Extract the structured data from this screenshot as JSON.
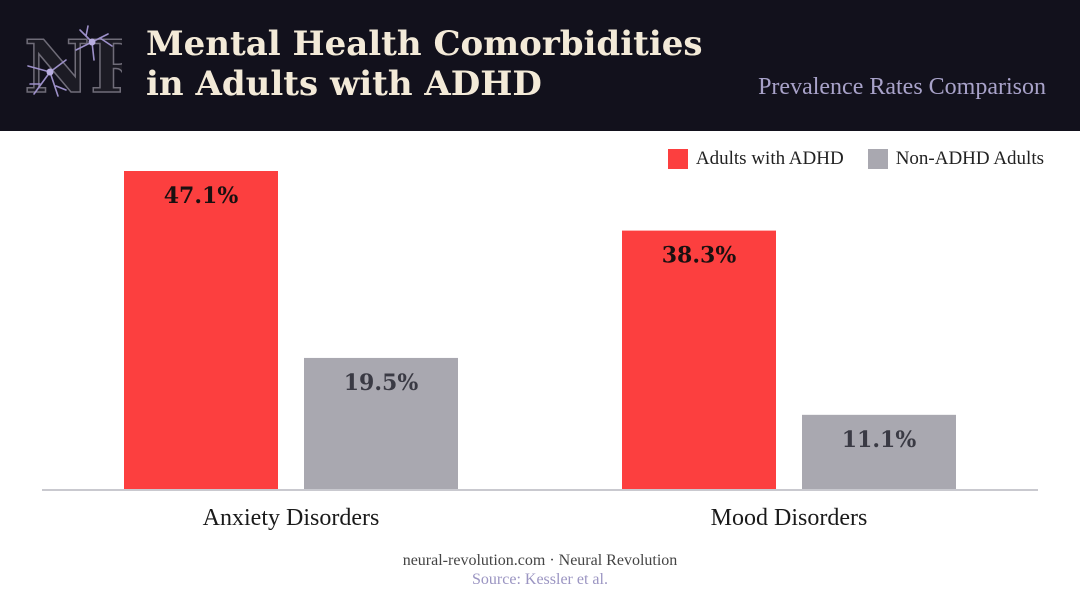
{
  "header": {
    "title_line1": "Mental Health Comorbidities",
    "title_line2": "in Adults with ADHD",
    "subtitle": "Prevalence Rates Comparison",
    "logo_text": "NR"
  },
  "colors": {
    "adhd": "#fc3f3f",
    "non_adhd": "#a9a8b0",
    "header_bg": "#12111c"
  },
  "chart_data": {
    "type": "bar",
    "categories": [
      "Anxiety Disorders",
      "Mood Disorders"
    ],
    "series": [
      {
        "name": "Adults with ADHD",
        "values": [
          47.1,
          38.3
        ],
        "labels": [
          "47.1%",
          "38.3%"
        ],
        "color": "#fc3f3f"
      },
      {
        "name": "Non-ADHD Adults",
        "values": [
          19.5,
          11.1
        ],
        "labels": [
          "19.5%",
          "11.1%"
        ],
        "color": "#a9a8b0"
      }
    ],
    "ylim": [
      0,
      47.1
    ],
    "grid": false,
    "legend": "top-right"
  },
  "footer": {
    "credit": "neural-revolution.com · Neural Revolution",
    "source": "Source: Kessler et al."
  }
}
